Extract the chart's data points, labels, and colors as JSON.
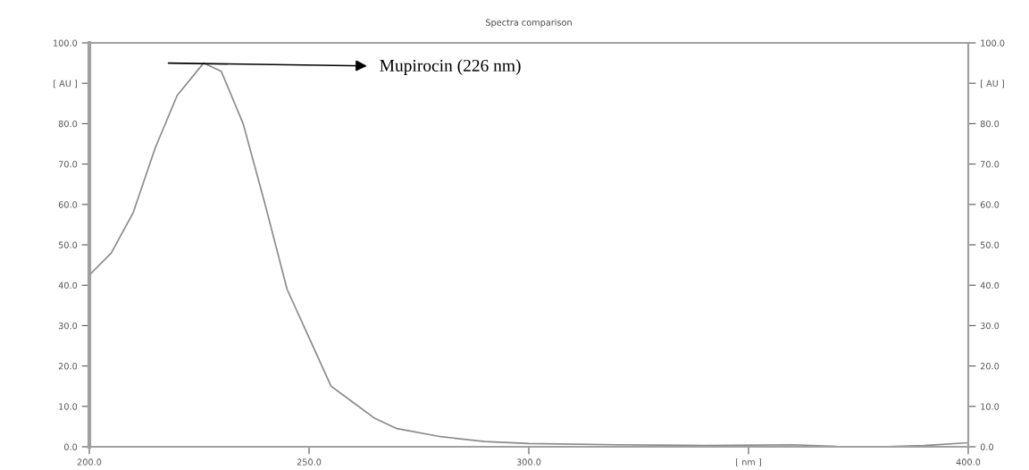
{
  "chart_data": {
    "type": "line",
    "title": "Spectra comparison",
    "x": [
      200,
      205,
      210,
      215,
      220,
      226,
      230,
      235,
      240,
      245,
      250,
      255,
      260,
      265,
      270,
      280,
      290,
      300,
      320,
      340,
      360,
      370,
      380,
      390,
      400
    ],
    "series": [
      {
        "color": "#8a8a8a",
        "values": [
          42.5,
          48,
          58,
          74,
          87,
          95,
          93,
          80,
          60,
          39,
          27,
          15,
          11,
          7,
          4.5,
          2.5,
          1.3,
          0.8,
          0.5,
          0.3,
          0.5,
          0.1,
          0.0,
          0.3,
          1.0
        ]
      }
    ],
    "xlim": [
      200,
      400
    ],
    "xticks": [
      {
        "value": 200,
        "label": "200.0"
      },
      {
        "value": 250,
        "label": "250.0"
      },
      {
        "value": 300,
        "label": "300.0"
      },
      {
        "value": 350,
        "label": "[ nm ]"
      },
      {
        "value": 400,
        "label": "400.0"
      }
    ],
    "ylim": [
      0,
      100
    ],
    "yticks": [
      {
        "value": 0,
        "label": "0.0"
      },
      {
        "value": 10,
        "label": "10.0"
      },
      {
        "value": 20,
        "label": "20.0"
      },
      {
        "value": 30,
        "label": "30.0"
      },
      {
        "value": 40,
        "label": "40.0"
      },
      {
        "value": 50,
        "label": "50.0"
      },
      {
        "value": 60,
        "label": "60.0"
      },
      {
        "value": 70,
        "label": "70.0"
      },
      {
        "value": 80,
        "label": "80.0"
      },
      {
        "value": 90,
        "label": "[ AU ]"
      },
      {
        "value": 100,
        "label": "100.0"
      }
    ],
    "y2lim": [
      0,
      100
    ],
    "y2ticks": [
      {
        "value": 0,
        "label": "0.0"
      },
      {
        "value": 10,
        "label": "10.0"
      },
      {
        "value": 20,
        "label": "20.0"
      },
      {
        "value": 30,
        "label": "30.0"
      },
      {
        "value": 40,
        "label": "40.0"
      },
      {
        "value": 50,
        "label": "50.0"
      },
      {
        "value": 60,
        "label": "60.0"
      },
      {
        "value": 70,
        "label": "70.0"
      },
      {
        "value": 80,
        "label": "80.0"
      },
      {
        "value": 90,
        "label": "[ AU ]"
      },
      {
        "value": 100,
        "label": "100.0"
      }
    ],
    "annotations": [
      "Mupirocin (226 nm)"
    ],
    "grid": false,
    "legend": false,
    "marker": "none",
    "line_style": "solid"
  }
}
